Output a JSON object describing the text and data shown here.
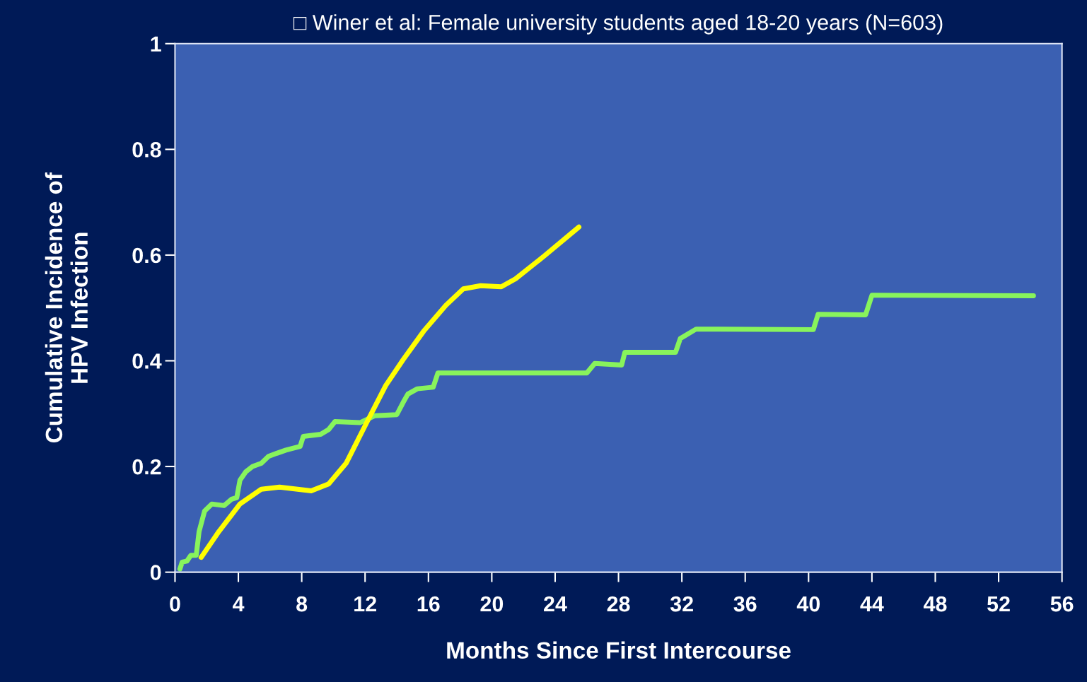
{
  "chart_data": {
    "type": "line",
    "title": "□ Winer et al: Female university students aged 18-20 years (N=603)",
    "xlabel": "Months Since First Intercourse",
    "ylabel": "Cumulative Incidence of\nHPV Infection",
    "xlim": [
      0,
      56
    ],
    "xticks": [
      0,
      4,
      8,
      12,
      16,
      20,
      24,
      28,
      32,
      36,
      40,
      44,
      48,
      52,
      56
    ],
    "ylim": [
      0,
      1
    ],
    "yticks": [
      0,
      0.2,
      0.4,
      0.6,
      0.8,
      1
    ],
    "grid": false,
    "legend": false,
    "marker": "none",
    "line_style": "solid",
    "series": [
      {
        "color": "#88f45c",
        "x": [
          0.31,
          0.45,
          0.75,
          1.0,
          1.34,
          1.52,
          1.87,
          2.32,
          3.1,
          3.57,
          3.9,
          4.1,
          4.47,
          4.9,
          5.45,
          5.9,
          6.43,
          7.0,
          7.9,
          8.1,
          9.2,
          9.7,
          10.1,
          11.7,
          12.6,
          14.0,
          14.4,
          14.7,
          15.3,
          16.3,
          16.6,
          20.2,
          26.0,
          26.5,
          28.2,
          28.4,
          31.6,
          31.9,
          32.9,
          40.3,
          40.6,
          43.6,
          44.0,
          54.2
        ],
        "values": [
          0.006,
          0.019,
          0.021,
          0.032,
          0.032,
          0.077,
          0.116,
          0.129,
          0.126,
          0.138,
          0.141,
          0.174,
          0.19,
          0.2,
          0.206,
          0.219,
          0.225,
          0.231,
          0.238,
          0.257,
          0.261,
          0.27,
          0.285,
          0.283,
          0.296,
          0.298,
          0.321,
          0.337,
          0.347,
          0.35,
          0.377,
          0.377,
          0.377,
          0.395,
          0.392,
          0.416,
          0.416,
          0.442,
          0.46,
          0.459,
          0.488,
          0.487,
          0.524,
          0.523
        ]
      },
      {
        "color": "#ffff00",
        "x": [
          1.65,
          2.77,
          4.1,
          5.45,
          6.6,
          8.6,
          9.7,
          10.8,
          12.1,
          13.3,
          14.4,
          15.7,
          17.1,
          18.2,
          19.3,
          20.6,
          21.5,
          23.3,
          25.5
        ],
        "values": [
          0.028,
          0.077,
          0.129,
          0.157,
          0.161,
          0.154,
          0.167,
          0.206,
          0.283,
          0.353,
          0.402,
          0.456,
          0.505,
          0.536,
          0.542,
          0.54,
          0.555,
          0.598,
          0.653
        ]
      }
    ]
  }
}
